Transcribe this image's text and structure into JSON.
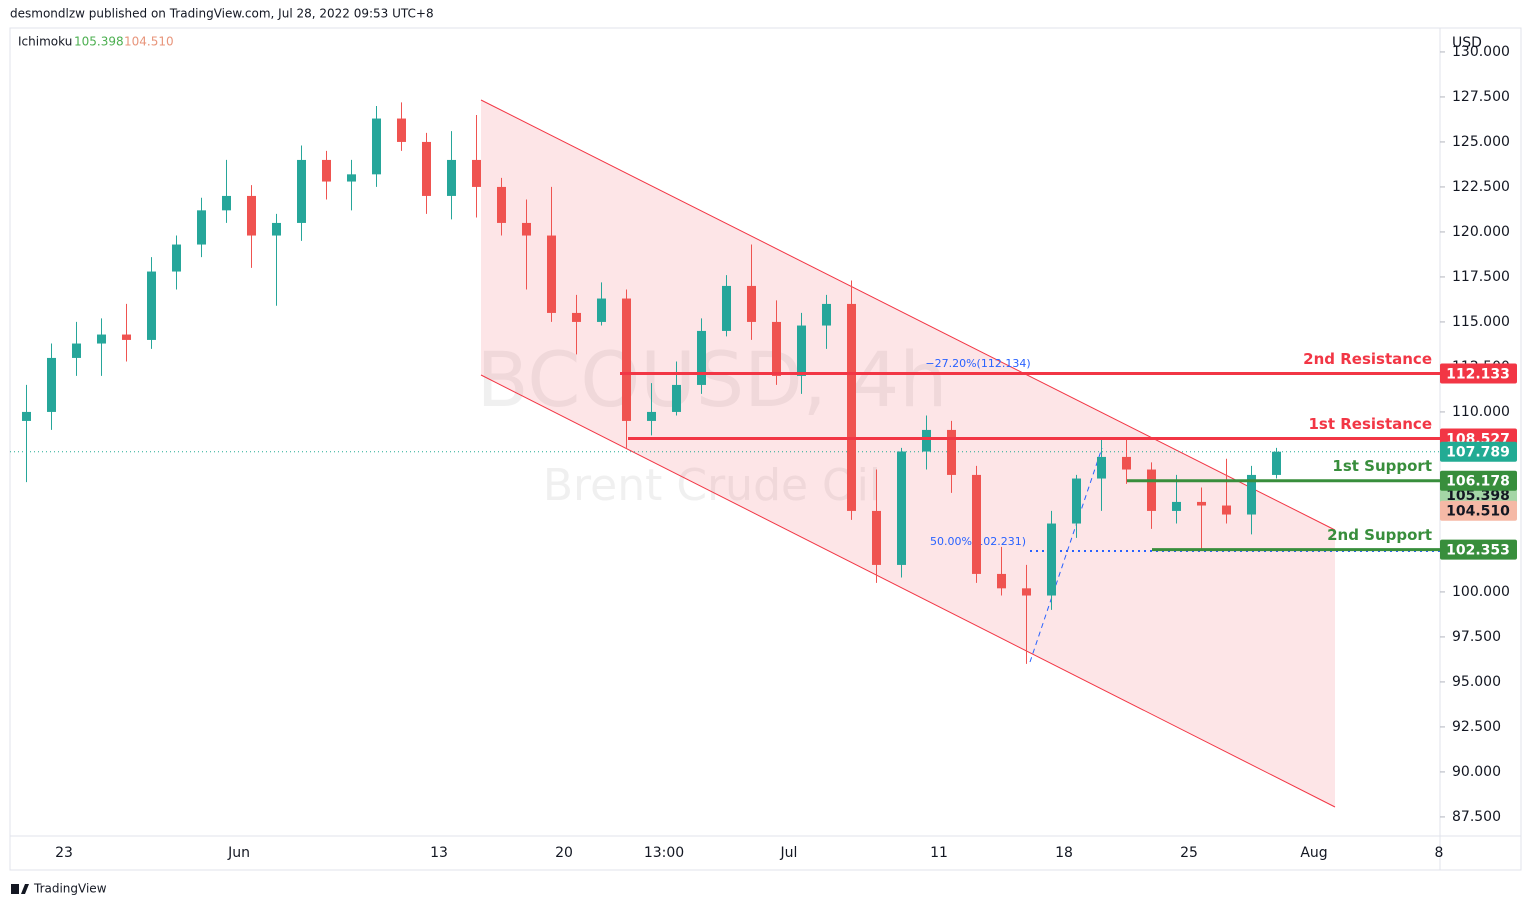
{
  "header": {
    "byline": "desmondlzw published on TradingView.com, Jul 28, 2022 09:53 UTC+8"
  },
  "footer": "TradingView",
  "chart_data": {
    "type": "candlestick",
    "title": "BCOUSD, 4h",
    "subtitle": "Brent Crude Oil",
    "y_axis_label": "USD",
    "categories": [
      null,
      null,
      "23",
      null,
      null,
      null,
      null,
      null,
      null,
      "Jun",
      null,
      null,
      null,
      null,
      null,
      null,
      null,
      "13",
      null,
      null,
      null,
      null,
      "20",
      null,
      null,
      null,
      "13:00",
      null,
      null,
      null,
      null,
      "Jul",
      null,
      null,
      null,
      null,
      null,
      "11",
      null,
      null,
      null,
      null,
      "18",
      null,
      null,
      null,
      null,
      "25",
      null,
      null,
      null,
      null,
      "Aug",
      null,
      null,
      null,
      null,
      "8"
    ],
    "open": [
      109.5,
      110.0,
      113.0,
      113.8,
      114.3,
      114.0,
      117.8,
      119.3,
      121.2,
      122.0,
      119.8,
      120.5,
      124.0,
      122.8,
      123.2,
      126.3,
      125.0,
      122.0,
      124.0,
      122.5,
      120.5,
      119.8,
      115.5,
      115.0,
      116.3,
      109.5,
      110.0,
      111.5,
      114.5,
      117.0,
      115.0,
      112.0,
      114.8,
      116.0,
      104.5,
      101.5,
      107.8,
      109.0,
      106.5,
      101.0,
      100.2,
      99.8,
      103.8,
      106.3,
      107.5,
      106.8,
      104.5,
      105.0,
      104.8,
      104.3,
      106.5,
      null,
      null,
      null,
      null,
      null,
      null,
      null
    ],
    "high": [
      111.5,
      113.8,
      115.0,
      115.2,
      116.0,
      118.6,
      119.8,
      121.9,
      124.0,
      122.6,
      121.0,
      124.8,
      124.5,
      124.0,
      127.0,
      127.2,
      125.5,
      125.6,
      126.5,
      123.0,
      121.8,
      122.5,
      116.5,
      117.2,
      116.8,
      111.6,
      112.8,
      115.2,
      117.6,
      119.3,
      116.2,
      115.5,
      116.5,
      117.3,
      106.8,
      108.0,
      109.8,
      109.5,
      107.0,
      102.5,
      101.5,
      104.5,
      106.5,
      108.5,
      108.5,
      107.2,
      106.5,
      105.8,
      107.4,
      107.0,
      108.0,
      null,
      null,
      null,
      null,
      null,
      null,
      null
    ],
    "low": [
      106.1,
      109.0,
      112.0,
      112.0,
      112.8,
      113.5,
      116.8,
      118.6,
      120.5,
      118.0,
      115.9,
      119.5,
      121.8,
      121.2,
      122.5,
      124.5,
      121.0,
      120.7,
      120.8,
      119.8,
      116.8,
      115.0,
      113.2,
      114.8,
      108.0,
      108.7,
      109.8,
      111.0,
      114.2,
      114.0,
      111.5,
      111.0,
      113.5,
      104.0,
      100.5,
      100.8,
      106.8,
      105.5,
      100.5,
      99.8,
      96.0,
      99.0,
      103.0,
      104.5,
      106.0,
      103.5,
      103.8,
      102.4,
      103.8,
      103.2,
      106.3,
      null,
      null,
      null,
      null,
      null,
      null,
      null
    ],
    "close": [
      110.0,
      113.0,
      113.8,
      114.3,
      114.0,
      117.8,
      119.3,
      121.2,
      122.0,
      119.8,
      120.5,
      124.0,
      122.8,
      123.2,
      126.3,
      125.0,
      122.0,
      124.0,
      122.5,
      120.5,
      119.8,
      115.5,
      115.0,
      116.3,
      109.5,
      110.0,
      111.5,
      114.5,
      117.0,
      115.0,
      112.0,
      114.8,
      116.0,
      104.5,
      101.5,
      107.8,
      109.0,
      106.5,
      101.0,
      100.2,
      99.8,
      103.8,
      106.3,
      107.5,
      106.8,
      104.5,
      105.0,
      104.8,
      104.3,
      106.5,
      107.789,
      null,
      null,
      null,
      null,
      null,
      null,
      null
    ],
    "up_color": "#26a69a",
    "down_color": "#ef5350",
    "ylim": [
      86.44,
      131.33
    ],
    "yticks": [
      {
        "value": 87.5,
        "label": "87.500"
      },
      {
        "value": 90,
        "label": "90.000"
      },
      {
        "value": 92.5,
        "label": "92.500"
      },
      {
        "value": 95,
        "label": "95.000"
      },
      {
        "value": 97.5,
        "label": "97.500"
      },
      {
        "value": 100,
        "label": "100.000"
      },
      {
        "value": 102.5,
        "label": "102.500"
      },
      {
        "value": 105,
        "label": "105.000"
      },
      {
        "value": 107.5,
        "label": "107.500"
      },
      {
        "value": 110,
        "label": "110.000"
      },
      {
        "value": 112.5,
        "label": "112.500"
      },
      {
        "value": 115,
        "label": "115.000"
      },
      {
        "value": 117.5,
        "label": "117.500"
      },
      {
        "value": 120,
        "label": "120.000"
      },
      {
        "value": 122.5,
        "label": "122.500"
      },
      {
        "value": 125,
        "label": "125.000"
      },
      {
        "value": 127.5,
        "label": "127.500"
      },
      {
        "value": 130,
        "label": "130.000"
      }
    ],
    "grid": false,
    "last_price": 107.789,
    "last_price_color": "#22ab94",
    "levels": [
      {
        "name": "2nd Resistance",
        "value": 112.133,
        "color": "#f23645"
      },
      {
        "name": "1st Resistance",
        "value": 108.527,
        "color": "#f23645"
      },
      {
        "name": "1st Support",
        "value": 106.178,
        "color": "#388e3c"
      },
      {
        "name": "2nd Support",
        "value": 102.353,
        "color": "#388e3c"
      }
    ],
    "indicator": {
      "name": "Ichimoku",
      "lines": [
        {
          "value": 105.398,
          "color": "#4caf50",
          "badge": "#a5d6a7"
        },
        {
          "value": 104.51,
          "label": "104.510",
          "color": "#e8957b",
          "badge": "#f5b9a6"
        }
      ]
    },
    "annotations": [
      "−27.20%(112.134)",
      "50.00%(102.231)"
    ]
  }
}
